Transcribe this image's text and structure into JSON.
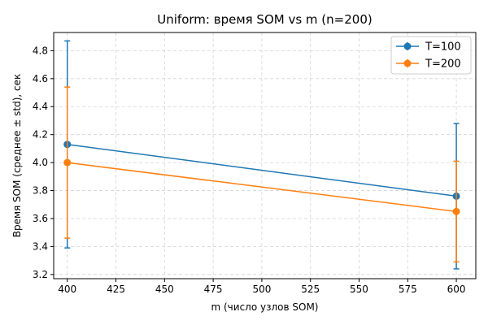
{
  "chart_data": {
    "type": "line",
    "title": "Uniform: время SOM vs m (n=200)",
    "xlabel": "m (число узлов SOM)",
    "ylabel": "Время SOM (среднее ± std), сек",
    "xlim": [
      393,
      610
    ],
    "ylim": [
      3.17,
      4.93
    ],
    "xticks": [
      400,
      425,
      450,
      475,
      500,
      525,
      550,
      575,
      600
    ],
    "yticks": [
      3.2,
      3.4,
      3.6,
      3.8,
      4.0,
      4.2,
      4.4,
      4.6,
      4.8
    ],
    "grid": true,
    "legend_position": "top-right",
    "series": [
      {
        "name": "T=100",
        "color": "#1f77b4",
        "x": [
          400,
          600
        ],
        "y": [
          4.13,
          3.76
        ],
        "err": [
          0.74,
          0.52
        ]
      },
      {
        "name": "T=200",
        "color": "#ff7f0e",
        "x": [
          400,
          600
        ],
        "y": [
          4.0,
          3.65
        ],
        "err": [
          0.54,
          0.36
        ]
      }
    ]
  }
}
